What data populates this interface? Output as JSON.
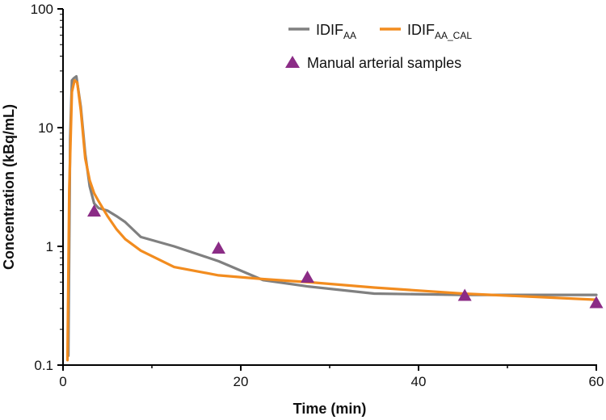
{
  "chart_data": {
    "type": "line",
    "title": "",
    "xlabel": "Time (min)",
    "ylabel": "Concentration (kBq/mL)",
    "xlim": [
      0,
      60
    ],
    "ylim": [
      0.1,
      100
    ],
    "yscale": "log",
    "grid": false,
    "legend_position": "top-right",
    "x_ticks": [
      0,
      20,
      40,
      60
    ],
    "x_tick_labels": [
      "0",
      "20",
      "40",
      "60"
    ],
    "y_ticks": [
      0.1,
      1,
      10,
      100
    ],
    "y_tick_labels": [
      "0.1",
      "1",
      "10",
      "100"
    ],
    "series": [
      {
        "name": "IDIF",
        "name_subscript": "AA",
        "kind": "line",
        "color": "#808080",
        "x": [
          0.6,
          0.8,
          1.0,
          1.2,
          1.5,
          2.0,
          2.5,
          3.0,
          3.5,
          4.0,
          5.0,
          6.0,
          7.0,
          8.75,
          12.5,
          17.5,
          22.5,
          27.5,
          35,
          45,
          55,
          60
        ],
        "y": [
          0.12,
          8,
          25,
          26,
          27,
          15,
          6,
          3.2,
          2.3,
          2.1,
          2.0,
          1.8,
          1.6,
          1.2,
          1.0,
          0.75,
          0.52,
          0.46,
          0.4,
          0.39,
          0.39,
          0.39
        ]
      },
      {
        "name": "IDIF",
        "name_subscript": "AA_CAL",
        "kind": "line",
        "color": "#F28C1F",
        "x": [
          0.5,
          0.7,
          1.0,
          1.3,
          1.6,
          2.0,
          2.5,
          3.0,
          3.5,
          4.0,
          5.0,
          6.0,
          7.0,
          8.75,
          12.5,
          17.5,
          22.5,
          27.5,
          35,
          45,
          55,
          60
        ],
        "y": [
          0.11,
          3,
          20,
          25,
          24,
          14,
          5.5,
          3.6,
          2.8,
          2.4,
          1.8,
          1.4,
          1.15,
          0.92,
          0.67,
          0.57,
          0.53,
          0.5,
          0.45,
          0.4,
          0.37,
          0.355
        ]
      },
      {
        "name": "Manual arterial samples",
        "kind": "scatter",
        "marker": "triangle",
        "color": "#8B2C86",
        "x": [
          3.5,
          17.5,
          27.5,
          45.2,
          60
        ],
        "y": [
          1.95,
          0.95,
          0.54,
          0.38,
          0.33
        ]
      }
    ]
  }
}
